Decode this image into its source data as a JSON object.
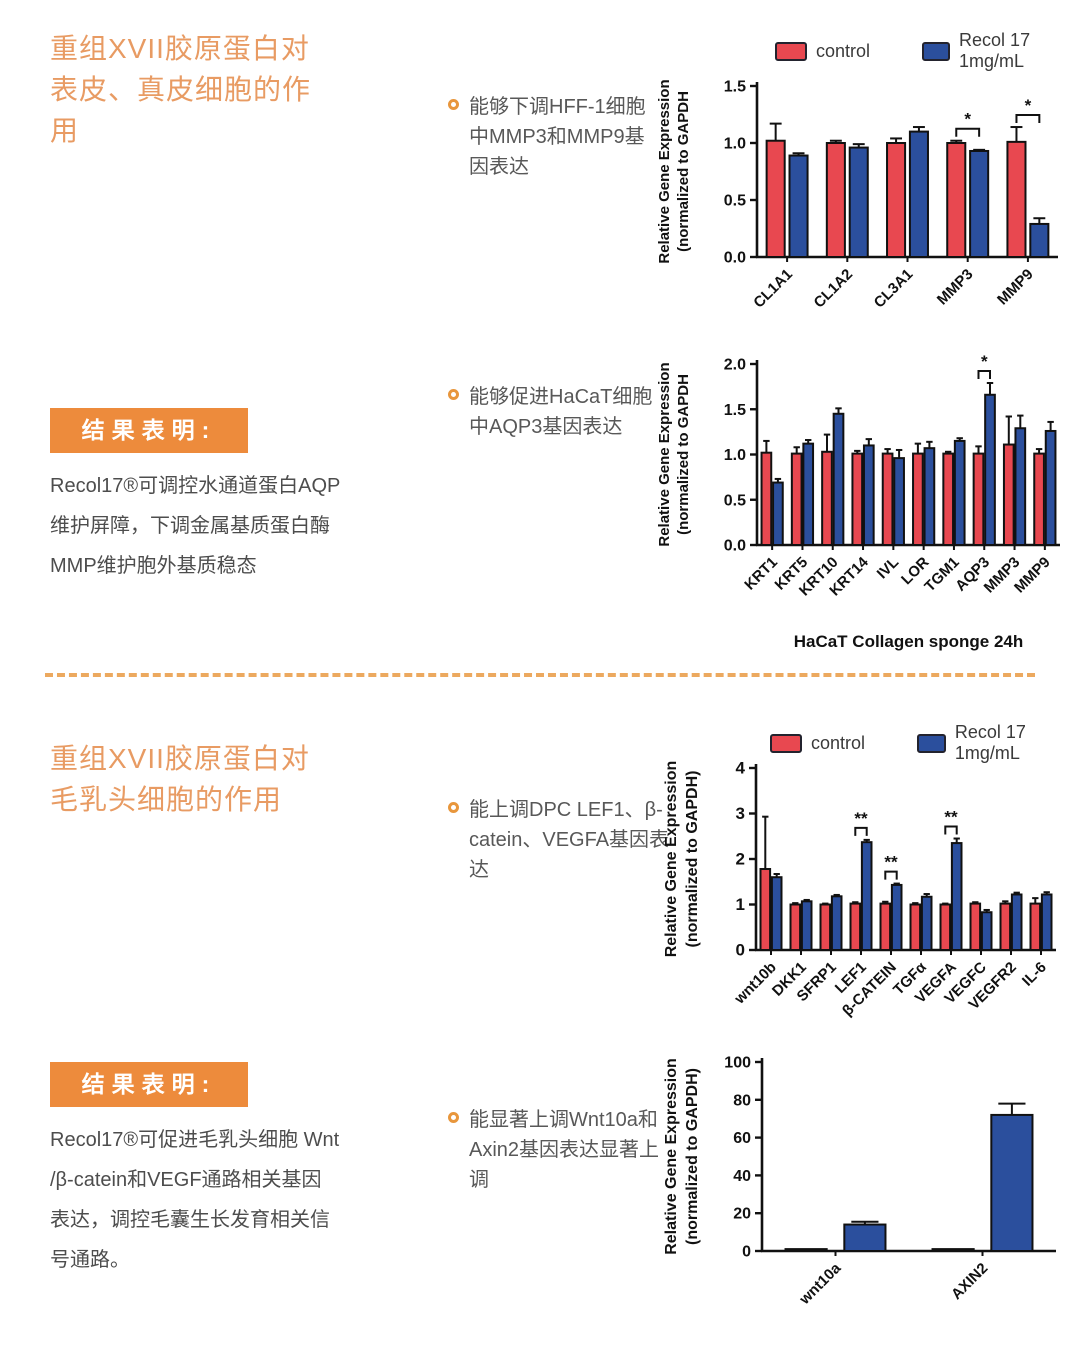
{
  "section1": {
    "title": "重组XVII胶原蛋白对\n表皮、真皮细胞的作\n用",
    "bullets": [
      "能够下调HFF-1细胞中MMP3和MMP9基因表达",
      "能够促进HaCaT细胞中AQP3基因表达"
    ],
    "result_box_label": "结果表明:",
    "result_text": "Recol17®可调控水通道蛋白AQP\n维护屏障，下调金属基质蛋白酶\nMMP维护胞外基质稳态"
  },
  "section2": {
    "title": "重组XVII胶原蛋白对\n毛乳头细胞的作用",
    "bullets": [
      "能上调DPC LEF1、β-catein、VEGFA基因表达",
      "能显著上调Wnt10a和Axin2基因表达显著上调"
    ],
    "result_box_label": "结果表明:",
    "result_text": "Recol17®可促进毛乳头细胞 Wnt\n/β-catein和VEGF通路相关基因\n表达，调控毛囊生长发育相关信\n号通路。"
  },
  "legend": {
    "items": [
      {
        "label": "control",
        "color": "#E84850"
      },
      {
        "label": "Recol 17 1mg/mL",
        "color": "#2B4F9D"
      }
    ]
  },
  "chart_data": [
    {
      "type": "bar",
      "title": "",
      "ylabel": "Relative Gene Expression\n(normalized to GAPDH",
      "xlabel": "",
      "ylim": [
        0,
        1.5
      ],
      "ytick_vals": [
        0,
        0.5,
        1.0,
        1.5
      ],
      "ytick_labels": [
        "0.0",
        "0.5",
        "1.0",
        "1.5"
      ],
      "categories": [
        "CL1A1",
        "CL1A2",
        "CL3A1",
        "MMP3",
        "MMP9"
      ],
      "series": [
        {
          "name": "control",
          "color": "#E84850",
          "values": [
            1.02,
            1.0,
            1.0,
            1.0,
            1.01
          ],
          "errors": [
            0.15,
            0.02,
            0.04,
            0.02,
            0.13
          ]
        },
        {
          "name": "Recol 17 1mg/mL",
          "color": "#2B4F9D",
          "values": [
            0.89,
            0.96,
            1.1,
            0.93,
            0.29
          ],
          "errors": [
            0.02,
            0.03,
            0.04,
            0.01,
            0.05
          ]
        }
      ],
      "significance": [
        {
          "category": "MMP3",
          "label": "*"
        },
        {
          "category": "MMP9",
          "label": "*"
        }
      ],
      "legend_position": "top-right-of-page",
      "grid": false
    },
    {
      "type": "bar",
      "title": "",
      "ylabel": "Relative Gene Expression\n(normalized to GAPDH",
      "xlabel": "HaCaT  Collagen sponge 24h",
      "ylim": [
        0,
        2.0
      ],
      "ytick_vals": [
        0,
        0.5,
        1.0,
        1.5,
        2.0
      ],
      "ytick_labels": [
        "0.0",
        "0.5",
        "1.0",
        "1.5",
        "2.0"
      ],
      "categories": [
        "KRT1",
        "KRT5",
        "KRT10",
        "KRT14",
        "IVL",
        "LOR",
        "TGM1",
        "AQP3",
        "MMP3",
        "MMP9"
      ],
      "series": [
        {
          "name": "control",
          "color": "#E84850",
          "values": [
            1.02,
            1.01,
            1.03,
            1.01,
            1.01,
            1.01,
            1.01,
            1.01,
            1.11,
            1.01
          ],
          "errors": [
            0.13,
            0.07,
            0.19,
            0.03,
            0.05,
            0.11,
            0.02,
            0.08,
            0.31,
            0.05
          ]
        },
        {
          "name": "Recol 17 1mg/mL",
          "color": "#2B4F9D",
          "values": [
            0.69,
            1.12,
            1.45,
            1.1,
            0.96,
            1.07,
            1.15,
            1.66,
            1.29,
            1.26
          ],
          "errors": [
            0.04,
            0.04,
            0.06,
            0.07,
            0.09,
            0.07,
            0.03,
            0.13,
            0.14,
            0.1
          ]
        }
      ],
      "significance": [
        {
          "category": "AQP3",
          "label": "*"
        }
      ],
      "legend_position": "shared-top",
      "grid": false
    },
    {
      "type": "bar",
      "title": "",
      "ylabel": "Relative Gene Expression\n(normalized to GAPDH)",
      "xlabel": "",
      "ylim": [
        0,
        4
      ],
      "ytick_vals": [
        0,
        1,
        2,
        3,
        4
      ],
      "ytick_labels": [
        "0",
        "1",
        "2",
        "3",
        "4"
      ],
      "categories": [
        "wnt10b",
        "DKK1",
        "SFRP1",
        "LEF1",
        "β-CATEIN",
        "TGFα",
        "VEGFA",
        "VEGFC",
        "VEGFR2",
        "IL-6"
      ],
      "series": [
        {
          "name": "control",
          "color": "#E84850",
          "values": [
            1.78,
            1.0,
            1.0,
            1.02,
            1.02,
            1.0,
            1.0,
            1.02,
            1.02,
            1.02
          ],
          "errors": [
            1.15,
            0.03,
            0.02,
            0.03,
            0.04,
            0.03,
            0.02,
            0.03,
            0.05,
            0.12
          ]
        },
        {
          "name": "Recol 17 1mg/mL",
          "color": "#2B4F9D",
          "values": [
            1.6,
            1.07,
            1.18,
            2.37,
            1.43,
            1.17,
            2.35,
            0.83,
            1.22,
            1.22
          ],
          "errors": [
            0.07,
            0.03,
            0.03,
            0.05,
            0.03,
            0.06,
            0.1,
            0.05,
            0.04,
            0.05
          ]
        }
      ],
      "significance": [
        {
          "category": "LEF1",
          "label": "**"
        },
        {
          "category": "β-CATEIN",
          "label": "**"
        },
        {
          "category": "VEGFA",
          "label": "**"
        }
      ],
      "legend_position": "shared-top",
      "grid": false
    },
    {
      "type": "bar",
      "title": "",
      "ylabel": "Relative Gene Expression\n(normalized to GAPDH)",
      "xlabel": "",
      "ylim": [
        0,
        100
      ],
      "ytick_vals": [
        0,
        20,
        40,
        60,
        80,
        100
      ],
      "ytick_labels": [
        "0",
        "20",
        "40",
        "60",
        "80",
        "100"
      ],
      "categories": [
        "wnt10a",
        "AXIN2"
      ],
      "series": [
        {
          "name": "control",
          "color": "#111111",
          "values": [
            1,
            1
          ],
          "errors": [
            0,
            0
          ]
        },
        {
          "name": "Recol 17 1mg/mL",
          "color": "#2B4F9D",
          "values": [
            14,
            72
          ],
          "errors": [
            1.5,
            6
          ]
        }
      ],
      "significance": [],
      "legend_position": "shared-top",
      "grid": false
    }
  ]
}
